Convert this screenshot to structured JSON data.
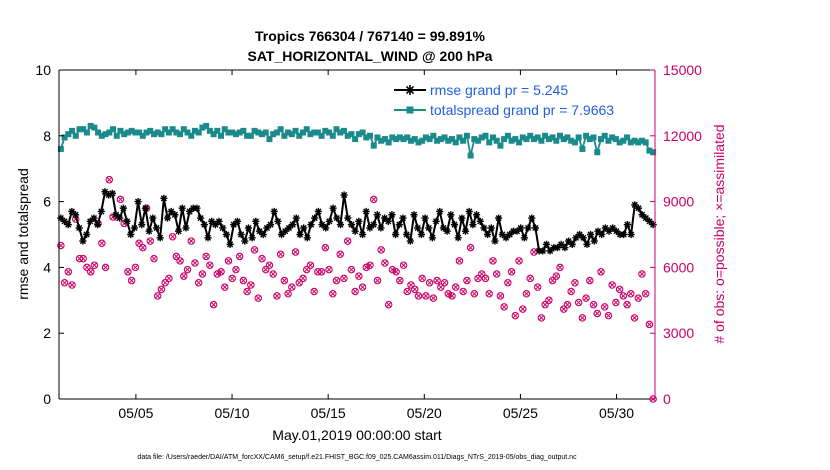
{
  "chart_data": {
    "type": "line",
    "title_line1": "Tropics 766304 / 767140 = 99.891%",
    "title_line2": "SAT_HORIZONTAL_WIND @ 200 hPa",
    "xlabel": "May.01,2019 00:00:00 start",
    "ylabel_left": "rmse and totalspread",
    "ylabel_right": "# of obs: o=possible; ×=assimilated",
    "footnote": "data file: /Users/raeder/DAI/ATM_forcXX/CAM6_setup/f.e21.FHIST_BGC.f09_025.CAM6assim.011/Diags_NTrS_2019-05/obs_diag_output.nc",
    "xlim": [
      1,
      32
    ],
    "ylim_left": [
      0,
      10
    ],
    "ylim_right": [
      0,
      15000
    ],
    "x_ticks": [
      5,
      10,
      15,
      20,
      25,
      30
    ],
    "x_tick_labels": [
      "05/05",
      "05/10",
      "05/15",
      "05/20",
      "05/25",
      "05/30"
    ],
    "y_ticks_left": [
      "0",
      "2",
      "4",
      "6",
      "8",
      "10"
    ],
    "y_ticks_right": [
      "0",
      "3000",
      "6000",
      "9000",
      "12000",
      "15000"
    ],
    "colors": {
      "rmse": "#000000",
      "spread": "#1a8a8a",
      "obs": "#cc0066",
      "legend_text": "#1f5fe0"
    },
    "series": [
      {
        "name": "rmse grand pr = 5.245",
        "values": [
          5.5,
          5.4,
          5.3,
          5.7,
          5.6,
          5.2,
          4.8,
          5.0,
          5.4,
          5.5,
          5.3,
          5.7,
          6.3,
          6.2,
          6.25,
          5.6,
          5.5,
          5.8,
          5.4,
          5.0,
          5.2,
          6.0,
          5.3,
          5.8,
          5.1,
          5.5,
          5.2,
          4.9,
          6.1,
          5.5,
          5.7,
          5.6,
          5.1,
          5.8,
          5.2,
          5.7,
          5.8,
          5.8,
          5.5,
          5.3,
          4.9,
          5.4,
          5.3,
          5.4,
          5.2,
          5.0,
          4.7,
          5.3,
          5.4,
          5.0,
          4.8,
          5.2,
          4.9,
          5.4,
          5.1,
          5.0,
          5.2,
          5.3,
          5.7,
          5.4,
          5.0,
          5.1,
          5.2,
          5.3,
          5.5,
          5.0,
          5.2,
          4.9,
          5.3,
          5.5,
          5.7,
          5.3,
          5.2,
          5.4,
          5.8,
          5.5,
          5.3,
          6.2,
          5.5,
          5.3,
          5.1,
          5.4,
          5.0,
          5.7,
          5.2,
          5.3,
          5.6,
          5.2,
          5.5,
          5.4,
          5.6,
          5.0,
          5.3,
          5.5,
          5.0,
          4.8,
          5.6,
          5.2,
          5.0,
          5.5,
          5.2,
          4.9,
          5.4,
          5.7,
          5.2,
          5.1,
          5.6,
          5.3,
          4.9,
          5.5,
          5.1,
          5.7,
          5.3,
          5.6,
          5.4,
          5.2,
          5.0,
          5.2,
          4.8,
          5.5,
          5.0,
          4.9,
          5.0,
          5.1,
          5.1,
          5.2,
          4.9,
          5.2,
          5.5,
          5.2,
          4.5,
          4.5,
          4.7,
          4.5,
          4.6,
          4.6,
          4.7,
          4.6,
          4.8,
          4.7,
          4.9,
          5.0,
          4.9,
          4.7,
          5.0,
          4.8,
          5.1,
          5.0,
          5.2,
          5.1,
          5.2,
          5.1,
          5.0,
          5.0,
          5.3,
          5.0,
          5.9,
          5.8,
          5.6,
          5.5,
          5.4,
          5.3
        ]
      },
      {
        "name": "totalspread grand pr = 7.9663",
        "values": [
          7.6,
          7.95,
          8.05,
          8.15,
          8.0,
          8.2,
          8.2,
          8.1,
          8.3,
          8.25,
          8.1,
          8.0,
          8.05,
          8.1,
          8.2,
          8.0,
          8.15,
          8.05,
          8.1,
          8.15,
          8.1,
          8.1,
          8.0,
          8.1,
          8.15,
          8.05,
          8.1,
          8.05,
          8.2,
          8.1,
          8.2,
          8.1,
          8.05,
          8.2,
          8.1,
          8.0,
          8.15,
          8.1,
          8.25,
          8.3,
          8.15,
          8.05,
          8.15,
          8.0,
          8.2,
          8.1,
          8.1,
          8.05,
          8.1,
          8.15,
          8.0,
          8.0,
          8.15,
          8.1,
          8.05,
          8.1,
          7.9,
          8.05,
          8.1,
          8.2,
          8.0,
          8.1,
          8.05,
          8.15,
          8.0,
          8.1,
          8.2,
          8.05,
          8.1,
          8.1,
          8.0,
          8.15,
          8.1,
          8.0,
          8.2,
          8.1,
          8.15,
          8.0,
          8.05,
          7.9,
          8.05,
          8.1,
          7.95,
          8.0,
          7.7,
          7.95,
          7.85,
          7.9,
          7.8,
          7.95,
          7.9,
          7.95,
          7.9,
          7.95,
          7.85,
          7.9,
          7.8,
          7.85,
          7.95,
          7.9,
          8.0,
          7.85,
          7.9,
          7.95,
          7.85,
          7.9,
          7.8,
          7.95,
          7.85,
          8.0,
          7.4,
          7.9,
          7.85,
          7.95,
          8.0,
          7.8,
          7.95,
          7.85,
          7.7,
          7.9,
          8.0,
          7.85,
          7.9,
          7.8,
          7.95,
          7.9,
          8.0,
          7.9,
          7.95,
          7.85,
          8.0,
          7.9,
          7.95,
          7.85,
          8.0,
          7.9,
          7.95,
          7.85,
          7.8,
          7.95,
          7.6,
          8.0,
          7.9,
          7.95,
          7.5,
          7.9,
          8.0,
          7.85,
          7.95,
          7.9,
          7.8,
          7.85,
          7.95,
          7.8,
          7.85,
          7.8,
          7.85,
          7.8,
          7.55,
          7.5
        ]
      }
    ],
    "obs_possible": [
      7000,
      5300,
      5800,
      5200,
      8200,
      6400,
      6400,
      6000,
      5800,
      6100,
      8000,
      7100,
      6000,
      10000,
      8300,
      8300,
      9100,
      8000,
      5800,
      5400,
      6000,
      7100,
      6900,
      8700,
      7200,
      6400,
      4700,
      5000,
      5300,
      5500,
      7400,
      6500,
      6300,
      5600,
      5900,
      7200,
      6200,
      5300,
      5700,
      6500,
      6100,
      4300,
      5700,
      5800,
      5100,
      6300,
      5500,
      5900,
      6500,
      5400,
      4900,
      5200,
      6800,
      4600,
      6400,
      5900,
      6100,
      5700,
      4700,
      6600,
      5400,
      4800,
      5100,
      6700,
      5300,
      5500,
      5900,
      6100,
      4900,
      5800,
      5800,
      6900,
      5900,
      4800,
      5400,
      6600,
      5500,
      7200,
      5900,
      4900,
      5600,
      5100,
      6000,
      6100,
      9100,
      5400,
      6800,
      6200,
      4300,
      5900,
      5800,
      5400,
      6100,
      4900,
      5200,
      5000,
      4700,
      5500,
      4700,
      5300,
      4600,
      5400,
      5100,
      5300,
      4800,
      4700,
      5100,
      6300,
      4900,
      5400,
      6900,
      4800,
      5500,
      5700,
      5500,
      4800,
      6300,
      5700,
      4700,
      4200,
      5300,
      5800,
      3800,
      6300,
      4100,
      4800,
      5500,
      6700,
      5100,
      3700,
      4300,
      4500,
      5400,
      5600,
      6000,
      4100,
      4300,
      4900,
      5300,
      4400,
      3700,
      4600,
      5400,
      4300,
      3900,
      5800,
      4200,
      3800,
      5200,
      4400,
      5000,
      4700,
      4300,
      4800,
      3700,
      4600,
      5700,
      4800,
      3400,
      0
    ]
  },
  "legend": {
    "rmse": "rmse grand pr = 5.245",
    "spread": "totalspread grand pr = 7.9663"
  }
}
